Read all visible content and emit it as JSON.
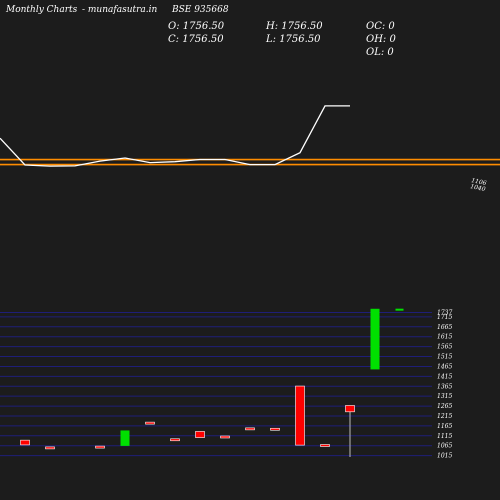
{
  "header": {
    "left": "Monthly Charts",
    "site": "- munafasutra.in",
    "symbol": "BSE 935668"
  },
  "ohlc": {
    "open": "O: 1756.50",
    "high": "H: 1756.50",
    "close": "C: 1756.50",
    "low": "L: 1756.50",
    "oc": "OC: 0",
    "oh": "OH: 0",
    "ol": "OL: 0"
  },
  "colors": {
    "background": "#1c1c1c",
    "up": "#00e000",
    "down": "#ff0000",
    "line": "#ffffff",
    "level": "#ff8c00",
    "grid": "#1e1e78"
  },
  "chart_data": [
    {
      "type": "line",
      "series": [
        {
          "values": [
            1230,
            1108,
            1103,
            1104,
            1126,
            1140,
            1119,
            1123,
            1133,
            1133,
            1110,
            1110,
            1164,
            1377,
            1377
          ]
        }
      ],
      "ylim": [
        1040,
        1540
      ],
      "y_tick_labels": [
        "1106",
        "1040"
      ],
      "level_lines": [
        1110,
        1133
      ]
    },
    {
      "type": "candlestick",
      "candles": [
        {
          "open": 1093,
          "high": 1093,
          "low": 1069,
          "close": 1069
        },
        {
          "open": 1059,
          "high": 1059,
          "low": 1055,
          "close": 1055
        },
        null,
        {
          "open": 1063,
          "high": 1063,
          "low": 1060,
          "close": 1060
        },
        {
          "open": 1064,
          "high": 1142,
          "low": 1064,
          "close": 1142
        },
        {
          "open": 1184,
          "high": 1184,
          "low": 1176,
          "close": 1176
        },
        {
          "open": 1100,
          "high": 1100,
          "low": 1096,
          "close": 1096
        },
        {
          "open": 1137,
          "high": 1137,
          "low": 1106,
          "close": 1106
        },
        {
          "open": 1114,
          "high": 1114,
          "low": 1110,
          "close": 1110
        },
        {
          "open": 1155,
          "high": 1155,
          "low": 1151,
          "close": 1151
        },
        {
          "open": 1153,
          "high": 1153,
          "low": 1149,
          "close": 1149
        },
        {
          "open": 1366,
          "high": 1366,
          "low": 1068,
          "close": 1068
        },
        {
          "open": 1071,
          "high": 1071,
          "low": 1068,
          "close": 1068
        },
        {
          "open": 1268,
          "high": 1268,
          "low": 1008,
          "close": 1236
        },
        {
          "open": 1450,
          "high": 1756,
          "low": 1450,
          "close": 1756
        },
        {
          "open": 1756.5,
          "high": 1756.5,
          "low": 1756.5,
          "close": 1756.5
        }
      ],
      "ylim": [
        1008,
        1770
      ],
      "y_ticks": [
        1015,
        1065,
        1115,
        1165,
        1215,
        1265,
        1315,
        1365,
        1415,
        1465,
        1515,
        1565,
        1615,
        1665,
        1715,
        1737
      ]
    }
  ]
}
